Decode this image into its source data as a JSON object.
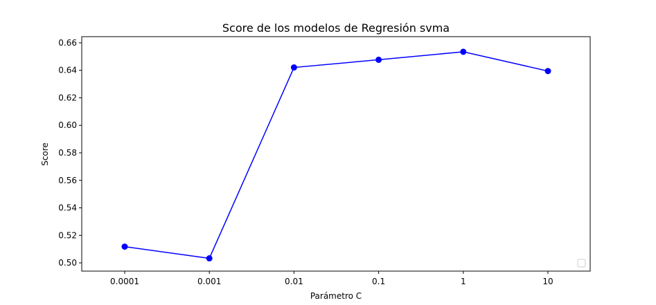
{
  "chart_data": {
    "type": "line",
    "title": "Score de los modelos de Regresión svma",
    "xlabel": "Parámetro C",
    "ylabel": "Score",
    "categories": [
      "0.0001",
      "0.001",
      "0.01",
      "0.1",
      "1",
      "10"
    ],
    "series": [
      {
        "values": [
          0.5118,
          0.5033,
          0.6421,
          0.6477,
          0.6535,
          0.6395
        ],
        "color": "#0000ff",
        "marker": "circle"
      }
    ],
    "ylim": [
      0.494,
      0.6645
    ],
    "yticks": [
      "0.50",
      "0.52",
      "0.54",
      "0.56",
      "0.58",
      "0.60",
      "0.62",
      "0.64",
      "0.66"
    ],
    "grid": false,
    "legend": "lower-right (empty)"
  }
}
